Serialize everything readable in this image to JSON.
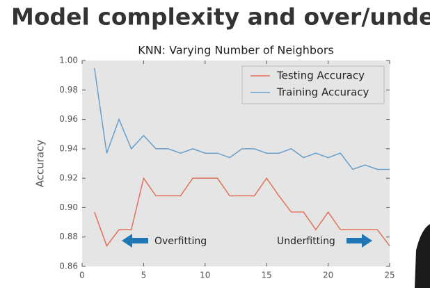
{
  "slide_title": "Model complexity and over/underfit",
  "chart_data": {
    "type": "line",
    "title": "KNN: Varying Number of Neighbors",
    "y_label": "Accuracy",
    "x": [
      1,
      2,
      3,
      4,
      5,
      6,
      7,
      8,
      9,
      10,
      11,
      12,
      13,
      14,
      15,
      16,
      17,
      18,
      19,
      20,
      21,
      22,
      23,
      24,
      25
    ],
    "series": [
      {
        "name": "Testing Accuracy",
        "color": "#e2705a",
        "values": [
          0.897,
          0.874,
          0.885,
          0.885,
          0.92,
          0.908,
          0.908,
          0.908,
          0.92,
          0.92,
          0.92,
          0.908,
          0.908,
          0.908,
          0.92,
          0.908,
          0.897,
          0.897,
          0.885,
          0.897,
          0.885,
          0.885,
          0.885,
          0.885,
          0.874
        ]
      },
      {
        "name": "Training Accuracy",
        "color": "#6a9ec9",
        "values": [
          0.995,
          0.937,
          0.96,
          0.94,
          0.949,
          0.94,
          0.94,
          0.937,
          0.94,
          0.937,
          0.937,
          0.934,
          0.94,
          0.94,
          0.937,
          0.937,
          0.94,
          0.934,
          0.937,
          0.934,
          0.937,
          0.926,
          0.929,
          0.926,
          0.926
        ]
      }
    ],
    "xlim": [
      0,
      25
    ],
    "xticks": [
      0,
      5,
      10,
      15,
      20,
      25
    ],
    "ylim": [
      0.86,
      1
    ],
    "yticks": [
      0.86,
      0.88,
      {
        "value": 0.9,
        "label": "0.90"
      },
      0.92,
      0.94,
      0.96,
      0.98,
      {
        "value": 1,
        "label": "1.00"
      }
    ],
    "grid": false,
    "legend": "upper right",
    "annotations": [
      "Overfitting",
      "Underfitting"
    ]
  }
}
